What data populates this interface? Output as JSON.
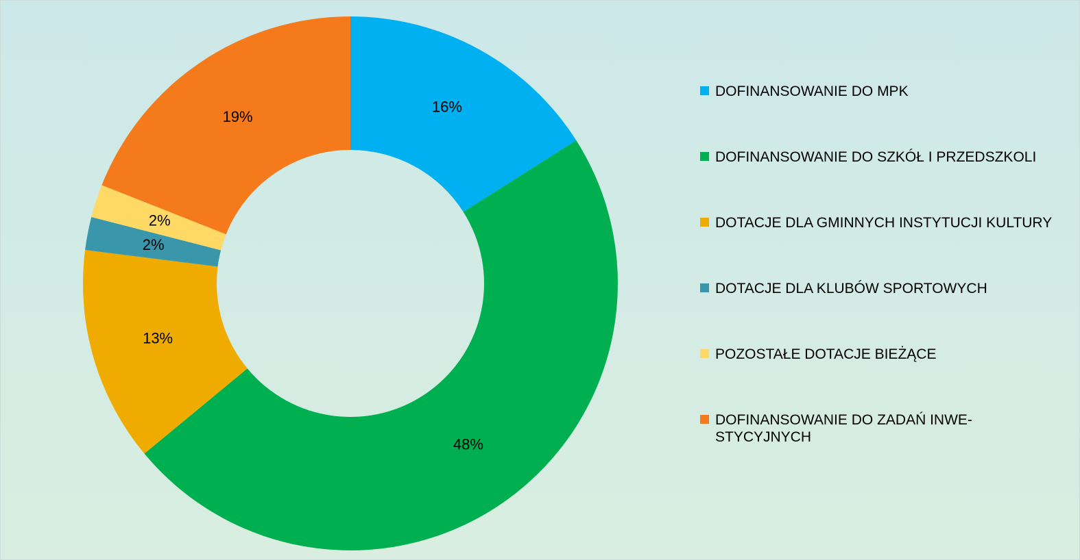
{
  "chart_data": {
    "type": "donut",
    "series": [
      {
        "name": "DOFINANSOWANIE DO MPK",
        "color": "#00b0f0",
        "values": [
          16
        ],
        "value_labels": [
          "16%"
        ]
      },
      {
        "name": "DOFINANSOWANIE DO SZKÓŁ I PRZEDSZKOLI",
        "color": "#00b050",
        "values": [
          48
        ],
        "value_labels": [
          "48%"
        ]
      },
      {
        "name": "DOTACJE DLA GMINNYCH INSTYTUCJI KULTURY",
        "color": "#f0ab00",
        "values": [
          13
        ],
        "value_labels": [
          "13%"
        ]
      },
      {
        "name": "DOTACJE DLA KLUBÓW SPORTOWYCH",
        "color": "#3a97ab",
        "values": [
          2
        ],
        "value_labels": [
          "2%"
        ]
      },
      {
        "name": "POZOSTAŁE DOTACJE BIEŻĄCE",
        "color": "#ffd966",
        "values": [
          2
        ],
        "value_labels": [
          "2%"
        ]
      },
      {
        "name": "DOFINANSOWANIE DO ZADAŃ INWE-STYCYJNYCH",
        "color": "#f47a1b",
        "values": [
          19
        ],
        "value_labels": [
          "19%"
        ]
      }
    ],
    "legend": "right"
  }
}
